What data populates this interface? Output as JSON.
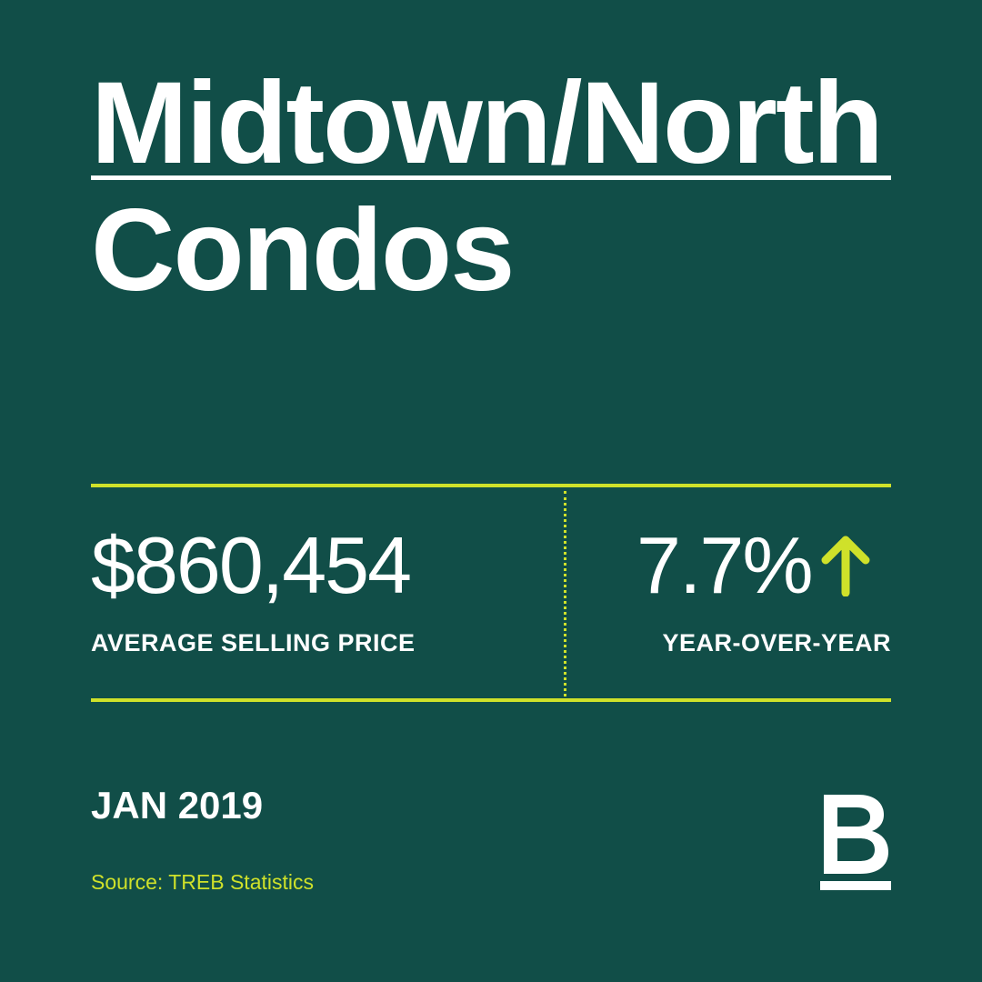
{
  "title": {
    "line1": "Midtown/North",
    "line2": "Condos"
  },
  "stats": {
    "price": {
      "value": "$860,454",
      "label": "AVERAGE SELLING PRICE"
    },
    "yoy": {
      "value": "7.7%",
      "label": "YEAR-OVER-YEAR",
      "direction": "up",
      "icon": "arrow-up-icon"
    }
  },
  "date": "JAN 2019",
  "source": "Source: TREB Statistics",
  "logo": {
    "icon": "brand-b-logo",
    "letter": "B"
  },
  "colors": {
    "background": "#114e48",
    "accent": "#cfe12a",
    "text": "#ffffff"
  }
}
